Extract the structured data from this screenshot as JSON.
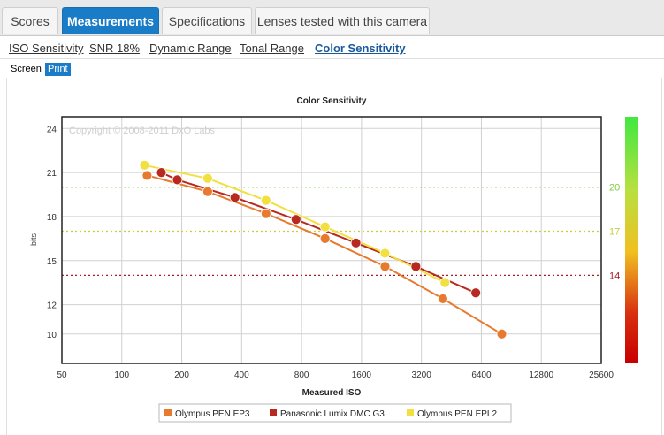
{
  "tabs": [
    {
      "label": "Scores",
      "active": false
    },
    {
      "label": "Measurements",
      "active": true
    },
    {
      "label": "Specifications",
      "active": false
    },
    {
      "label": "Lenses tested with this camera",
      "active": false
    }
  ],
  "subnav": [
    {
      "label": "ISO Sensitivity",
      "active": false
    },
    {
      "label": "SNR 18%",
      "active": false
    },
    {
      "label": "Dynamic Range",
      "active": false
    },
    {
      "label": "Tonal Range",
      "active": false
    },
    {
      "label": "Color Sensitivity",
      "active": true
    }
  ],
  "view_toggle": {
    "screen": "Screen",
    "print": "Print",
    "selected": "Print"
  },
  "chart_data": {
    "type": "line",
    "title": "Color Sensitivity",
    "xlabel": "Measured ISO",
    "ylabel": "bits",
    "watermark": "Copyright © 2008-2011 DxO Labs",
    "x_scale": "log2",
    "x_ticks": [
      "50",
      "100",
      "200",
      "400",
      "800",
      "1600",
      "3200",
      "6400",
      "12800",
      "25600"
    ],
    "y_ticks": [
      "10",
      "12",
      "15",
      "18",
      "21",
      "24"
    ],
    "xlim": [
      50,
      25600
    ],
    "ylim": [
      8,
      24.8
    ],
    "grid": true,
    "legend_placement": "bottom",
    "reference_lines": [
      {
        "label": "20",
        "value": 20,
        "color": "#80cc40"
      },
      {
        "label": "17",
        "value": 17,
        "color": "#c9cc40"
      },
      {
        "label": "14",
        "value": 14,
        "color": "#a02020"
      }
    ],
    "colorbar": true,
    "series": [
      {
        "name": "Olympus PEN EP3",
        "color": "#e87a30",
        "points": [
          [
            134,
            20.8
          ],
          [
            270,
            19.7
          ],
          [
            530,
            18.2
          ],
          [
            1050,
            16.5
          ],
          [
            2100,
            14.6
          ],
          [
            4100,
            12.4
          ],
          [
            8100,
            10.0
          ]
        ]
      },
      {
        "name": "Panasonic Lumix DMC G3",
        "color": "#b82a20",
        "points": [
          [
            158,
            21.0
          ],
          [
            190,
            20.5
          ],
          [
            370,
            19.3
          ],
          [
            750,
            17.8
          ],
          [
            1500,
            16.2
          ],
          [
            3000,
            14.6
          ],
          [
            6000,
            12.8
          ]
        ]
      },
      {
        "name": "Olympus PEN EPL2",
        "color": "#f2e040",
        "points": [
          [
            130,
            21.5
          ],
          [
            270,
            20.6
          ],
          [
            530,
            19.1
          ],
          [
            1050,
            17.3
          ],
          [
            2100,
            15.5
          ],
          [
            4200,
            13.5
          ]
        ]
      }
    ]
  }
}
